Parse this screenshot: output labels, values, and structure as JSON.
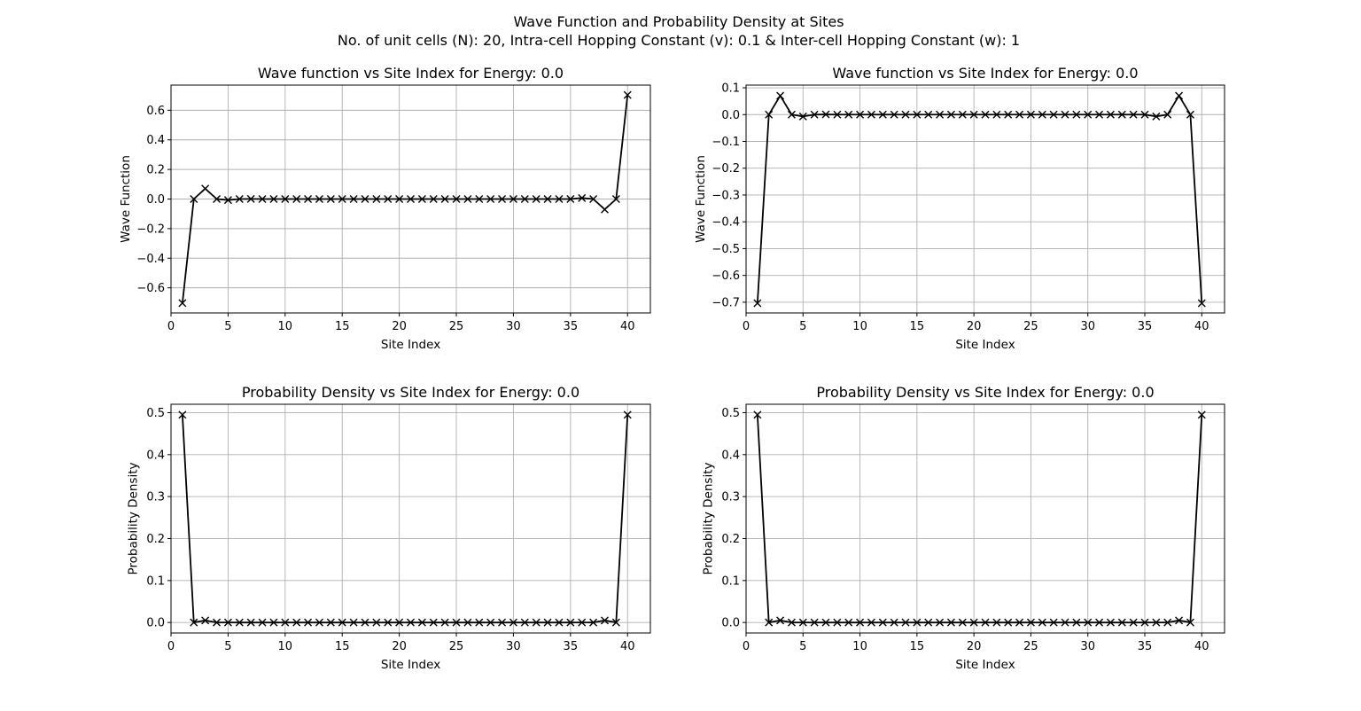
{
  "figure": {
    "title_line1": "Wave Function and Probability Density at Sites",
    "title_line2": "No. of unit cells (N): 20, Intra-cell Hopping Constant (v): 0.1 & Inter-cell Hopping Constant (w): 1"
  },
  "chart_data": [
    {
      "type": "line",
      "title": "Wave function vs Site Index for Energy: 0.0",
      "xlabel": "Site Index",
      "ylabel": "Wave Function",
      "xlim": [
        0,
        42
      ],
      "ylim": [
        -0.77,
        0.77
      ],
      "xticks": [
        0,
        5,
        10,
        15,
        20,
        25,
        30,
        35,
        40
      ],
      "yticks": [
        -0.6,
        -0.4,
        -0.2,
        0.0,
        0.2,
        0.4,
        0.6
      ],
      "ytick_labels": [
        "−0.6",
        "−0.4",
        "−0.2",
        "0.0",
        "0.2",
        "0.4",
        "0.6"
      ],
      "grid": true,
      "marker": "x",
      "color": "#000000",
      "x": [
        1,
        2,
        3,
        4,
        5,
        6,
        7,
        8,
        9,
        10,
        11,
        12,
        13,
        14,
        15,
        16,
        17,
        18,
        19,
        20,
        21,
        22,
        23,
        24,
        25,
        26,
        27,
        28,
        29,
        30,
        31,
        32,
        33,
        34,
        35,
        36,
        37,
        38,
        39,
        40
      ],
      "y": [
        -0.7036,
        0.0,
        0.0704,
        0.0,
        -0.007,
        0.0,
        0.0007,
        0.0,
        0,
        0,
        0,
        0,
        0,
        0,
        0,
        0,
        0,
        0,
        0,
        0,
        0,
        0,
        0,
        0,
        0,
        0,
        0,
        0,
        0,
        0,
        0,
        0,
        0,
        0,
        0.0,
        0.007,
        0.0,
        -0.0704,
        0.0,
        0.7036
      ]
    },
    {
      "type": "line",
      "title": "Wave function vs Site Index for Energy: 0.0",
      "xlabel": "Site Index",
      "ylabel": "Wave Function",
      "xlim": [
        0,
        42
      ],
      "ylim": [
        -0.74,
        0.11
      ],
      "xticks": [
        0,
        5,
        10,
        15,
        20,
        25,
        30,
        35,
        40
      ],
      "yticks": [
        -0.7,
        -0.6,
        -0.5,
        -0.4,
        -0.3,
        -0.2,
        -0.1,
        0.0,
        0.1
      ],
      "ytick_labels": [
        "−0.7",
        "−0.6",
        "−0.5",
        "−0.4",
        "−0.3",
        "−0.2",
        "−0.1",
        "0.0",
        "0.1"
      ],
      "grid": true,
      "marker": "x",
      "color": "#000000",
      "x": [
        1,
        2,
        3,
        4,
        5,
        6,
        7,
        8,
        9,
        10,
        11,
        12,
        13,
        14,
        15,
        16,
        17,
        18,
        19,
        20,
        21,
        22,
        23,
        24,
        25,
        26,
        27,
        28,
        29,
        30,
        31,
        32,
        33,
        34,
        35,
        36,
        37,
        38,
        39,
        40
      ],
      "y": [
        -0.7036,
        0.0,
        0.0704,
        0.0,
        -0.007,
        0.0,
        0.0007,
        0.0,
        0,
        0,
        0,
        0,
        0,
        0,
        0,
        0,
        0,
        0,
        0,
        0,
        0,
        0,
        0,
        0,
        0,
        0,
        0,
        0,
        0,
        0,
        0,
        0,
        0,
        0,
        0.0,
        -0.007,
        0.0,
        0.0704,
        0.0,
        -0.7036
      ]
    },
    {
      "type": "line",
      "title": "Probability Density vs Site Index for Energy: 0.0",
      "xlabel": "Site Index",
      "ylabel": "Probability Density",
      "xlim": [
        0,
        42
      ],
      "ylim": [
        -0.025,
        0.52
      ],
      "xticks": [
        0,
        5,
        10,
        15,
        20,
        25,
        30,
        35,
        40
      ],
      "yticks": [
        0.0,
        0.1,
        0.2,
        0.3,
        0.4,
        0.5
      ],
      "ytick_labels": [
        "0.0",
        "0.1",
        "0.2",
        "0.3",
        "0.4",
        "0.5"
      ],
      "grid": true,
      "marker": "x",
      "color": "#000000",
      "x": [
        1,
        2,
        3,
        4,
        5,
        6,
        7,
        8,
        9,
        10,
        11,
        12,
        13,
        14,
        15,
        16,
        17,
        18,
        19,
        20,
        21,
        22,
        23,
        24,
        25,
        26,
        27,
        28,
        29,
        30,
        31,
        32,
        33,
        34,
        35,
        36,
        37,
        38,
        39,
        40
      ],
      "y": [
        0.495,
        0.0,
        0.00495,
        0.0,
        5e-05,
        0,
        0,
        0,
        0,
        0,
        0,
        0,
        0,
        0,
        0,
        0,
        0,
        0,
        0,
        0,
        0,
        0,
        0,
        0,
        0,
        0,
        0,
        0,
        0,
        0,
        0,
        0,
        0,
        0,
        0,
        5e-05,
        0.0,
        0.00495,
        0.0,
        0.495
      ]
    },
    {
      "type": "line",
      "title": "Probability Density vs Site Index for Energy: 0.0",
      "xlabel": "Site Index",
      "ylabel": "Probability Density",
      "xlim": [
        0,
        42
      ],
      "ylim": [
        -0.025,
        0.52
      ],
      "xticks": [
        0,
        5,
        10,
        15,
        20,
        25,
        30,
        35,
        40
      ],
      "yticks": [
        0.0,
        0.1,
        0.2,
        0.3,
        0.4,
        0.5
      ],
      "ytick_labels": [
        "0.0",
        "0.1",
        "0.2",
        "0.3",
        "0.4",
        "0.5"
      ],
      "grid": true,
      "marker": "x",
      "color": "#000000",
      "x": [
        1,
        2,
        3,
        4,
        5,
        6,
        7,
        8,
        9,
        10,
        11,
        12,
        13,
        14,
        15,
        16,
        17,
        18,
        19,
        20,
        21,
        22,
        23,
        24,
        25,
        26,
        27,
        28,
        29,
        30,
        31,
        32,
        33,
        34,
        35,
        36,
        37,
        38,
        39,
        40
      ],
      "y": [
        0.495,
        0.0,
        0.00495,
        0.0,
        5e-05,
        0,
        0,
        0,
        0,
        0,
        0,
        0,
        0,
        0,
        0,
        0,
        0,
        0,
        0,
        0,
        0,
        0,
        0,
        0,
        0,
        0,
        0,
        0,
        0,
        0,
        0,
        0,
        0,
        0,
        0,
        5e-05,
        0.0,
        0.00495,
        0.0,
        0.495
      ]
    }
  ]
}
